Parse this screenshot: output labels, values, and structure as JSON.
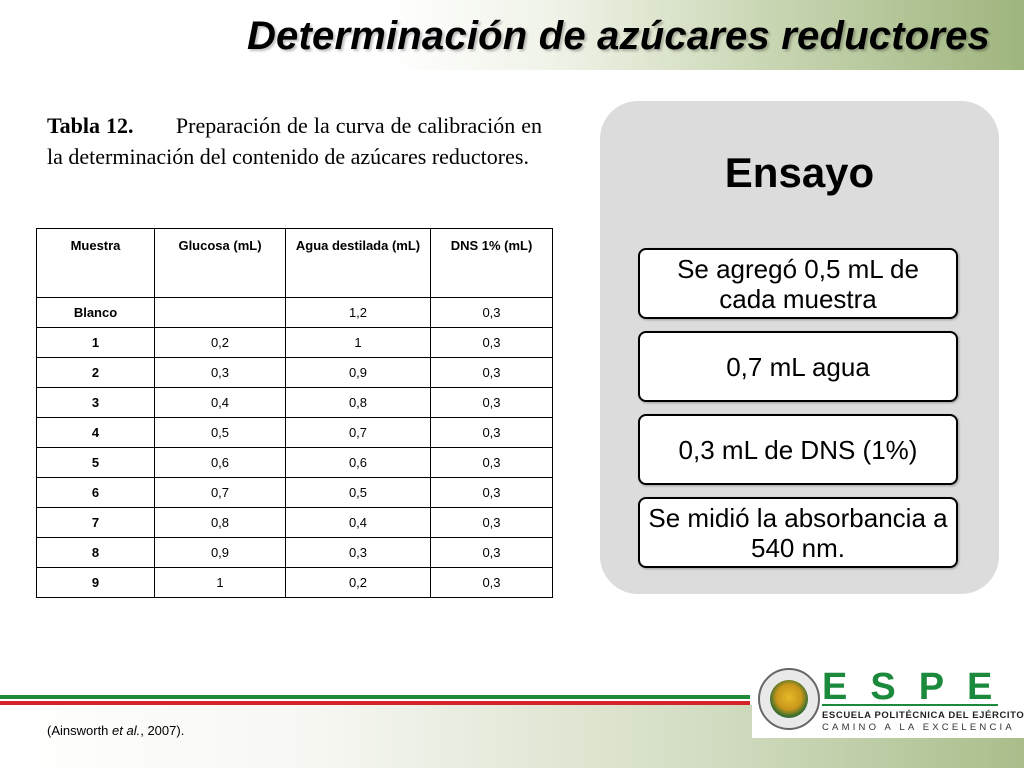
{
  "slide": {
    "title": "Determinación de azúcares reductores"
  },
  "caption": {
    "label": "Tabla 12.",
    "text": "Preparación de la curva de calibración en la determinación del contenido de azúcares reductores."
  },
  "table": {
    "headers": [
      "Muestra",
      "Glucosa (mL)",
      "Agua destilada (mL)",
      "DNS 1% (mL)"
    ],
    "rows": [
      [
        "Blanco",
        "",
        "1,2",
        "0,3"
      ],
      [
        "1",
        "0,2",
        "1",
        "0,3"
      ],
      [
        "2",
        "0,3",
        "0,9",
        "0,3"
      ],
      [
        "3",
        "0,4",
        "0,8",
        "0,3"
      ],
      [
        "4",
        "0,5",
        "0,7",
        "0,3"
      ],
      [
        "5",
        "0,6",
        "0,6",
        "0,3"
      ],
      [
        "6",
        "0,7",
        "0,5",
        "0,3"
      ],
      [
        "7",
        "0,8",
        "0,4",
        "0,3"
      ],
      [
        "8",
        "0,9",
        "0,3",
        "0,3"
      ],
      [
        "9",
        "1",
        "0,2",
        "0,3"
      ]
    ]
  },
  "ensayo": {
    "title": "Ensayo",
    "steps": [
      "Se agregó 0,5 mL de cada muestra",
      "0,7 mL agua",
      "0,3 mL de DNS (1%)",
      "Se midió la absorbancia a 540 nm."
    ]
  },
  "footer": {
    "citation_prefix": "(Ainsworth ",
    "citation_italic": "et al.",
    "citation_suffix": ", 2007).",
    "logo_word": "ESPE",
    "logo_line1": "ESCUELA POLITÉCNICA DEL EJÉRCITO",
    "logo_line2": "CAMINO A LA EXCELENCIA"
  },
  "colors": {
    "brand_green": "#1c8a3c",
    "stripe_red": "#d4242a",
    "panel_gray": "#dcdcdc"
  }
}
